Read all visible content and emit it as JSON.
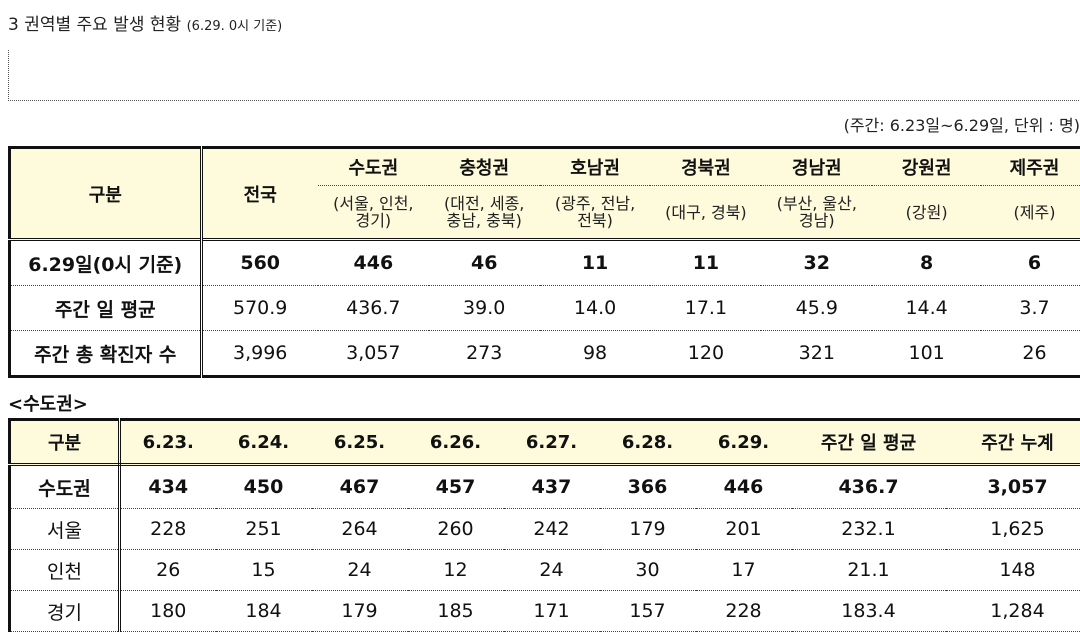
{
  "heading": {
    "main": "3 권역별 주요 발생 현황",
    "date_note": "(6.29. 0시 기준)"
  },
  "period_note": "(주간: 6.23일~6.29일, 단위 : 명)",
  "table1": {
    "col_label": "구분",
    "col_national": "전국",
    "regions": [
      {
        "name": "수도권",
        "sub": [
          "(서울, 인천,",
          "경기)"
        ]
      },
      {
        "name": "충청권",
        "sub": [
          "(대전, 세종,",
          "충남, 충북)"
        ]
      },
      {
        "name": "호남권",
        "sub": [
          "(광주, 전남,",
          "전북)"
        ]
      },
      {
        "name": "경북권",
        "sub": [
          "(대구, 경북)",
          ""
        ]
      },
      {
        "name": "경남권",
        "sub": [
          "(부산, 울산,",
          "경남)"
        ]
      },
      {
        "name": "강원권",
        "sub": [
          "(강원)",
          ""
        ]
      },
      {
        "name": "제주권",
        "sub": [
          "(제주)",
          ""
        ]
      }
    ],
    "rows": [
      {
        "label": "6.29일(0시 기준)",
        "values": [
          "560",
          "446",
          "46",
          "11",
          "11",
          "32",
          "8",
          "6"
        ]
      },
      {
        "label": "주간 일 평균",
        "values": [
          "570.9",
          "436.7",
          "39.0",
          "14.0",
          "17.1",
          "45.9",
          "14.4",
          "3.7"
        ]
      },
      {
        "label": "주간 총 확진자 수",
        "values": [
          "3,996",
          "3,057",
          "273",
          "98",
          "120",
          "321",
          "101",
          "26"
        ]
      }
    ]
  },
  "subsection_title": "<수도권>",
  "table2": {
    "headers": [
      "구분",
      "6.23.",
      "6.24.",
      "6.25.",
      "6.26.",
      "6.27.",
      "6.28.",
      "6.29.",
      "주간 일 평균",
      "주간 누계"
    ],
    "rows": [
      {
        "label": "수도권",
        "values": [
          "434",
          "450",
          "467",
          "457",
          "437",
          "366",
          "446",
          "436.7",
          "3,057"
        ]
      },
      {
        "label": "서울",
        "values": [
          "228",
          "251",
          "264",
          "260",
          "242",
          "179",
          "201",
          "232.1",
          "1,625"
        ]
      },
      {
        "label": "인천",
        "values": [
          "26",
          "15",
          "24",
          "12",
          "24",
          "30",
          "17",
          "21.1",
          "148"
        ]
      },
      {
        "label": "경기",
        "values": [
          "180",
          "184",
          "179",
          "185",
          "171",
          "157",
          "228",
          "183.4",
          "1,284"
        ]
      }
    ]
  }
}
